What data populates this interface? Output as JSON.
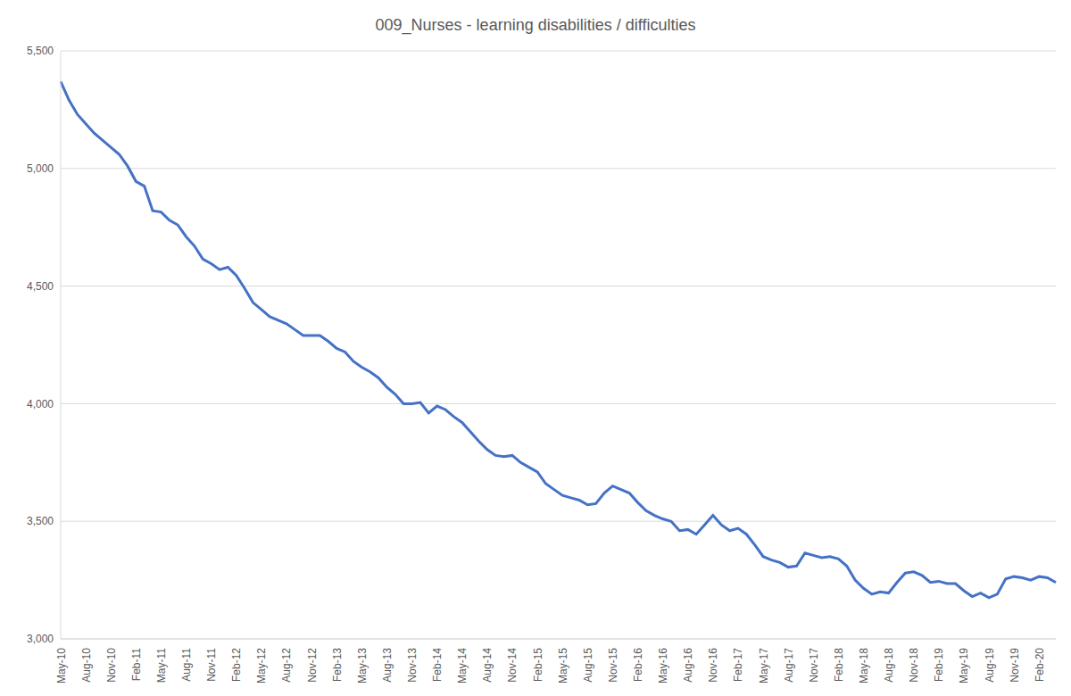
{
  "chart_data": {
    "type": "line",
    "title": "009_Nurses - learning disabilities / difficulties",
    "categories": [
      "May-10",
      null,
      null,
      "Aug-10",
      null,
      null,
      "Nov-10",
      null,
      null,
      "Feb-11",
      null,
      null,
      "May-11",
      null,
      null,
      "Aug-11",
      null,
      null,
      "Nov-11",
      null,
      null,
      "Feb-12",
      null,
      null,
      "May-12",
      null,
      null,
      "Aug-12",
      null,
      null,
      "Nov-12",
      null,
      null,
      "Feb-13",
      null,
      null,
      "May-13",
      null,
      null,
      "Aug-13",
      null,
      null,
      "Nov-13",
      null,
      null,
      "Feb-14",
      null,
      null,
      "May-14",
      null,
      null,
      "Aug-14",
      null,
      null,
      "Nov-14",
      null,
      null,
      "Feb-15",
      null,
      null,
      "May-15",
      null,
      null,
      "Aug-15",
      null,
      null,
      "Nov-15",
      null,
      null,
      "Feb-16",
      null,
      null,
      "May-16",
      null,
      null,
      "Aug-16",
      null,
      null,
      "Nov-16",
      null,
      null,
      "Feb-17",
      null,
      null,
      "May-17",
      null,
      null,
      "Aug-17",
      null,
      null,
      "Nov-17",
      null,
      null,
      "Feb-18",
      null,
      null,
      "May-18",
      null,
      null,
      "Aug-18",
      null,
      null,
      "Nov-18",
      null,
      null,
      "Feb-19",
      null,
      null,
      "May-19",
      null,
      null,
      "Aug-19",
      null,
      null,
      "Nov-19",
      null,
      null,
      "Feb-20",
      null,
      null
    ],
    "values": [
      5370,
      5290,
      5230,
      5190,
      5150,
      5120,
      5090,
      5060,
      5010,
      4945,
      4925,
      4820,
      4815,
      4780,
      4760,
      4710,
      4670,
      4615,
      4595,
      4570,
      4580,
      4545,
      4490,
      4430,
      4400,
      4370,
      4355,
      4340,
      4315,
      4290,
      4290,
      4290,
      4265,
      4235,
      4220,
      4180,
      4155,
      4135,
      4110,
      4070,
      4040,
      4000,
      4000,
      4005,
      3960,
      3990,
      3975,
      3945,
      3920,
      3880,
      3840,
      3805,
      3780,
      3775,
      3780,
      3750,
      3730,
      3710,
      3660,
      3635,
      3610,
      3600,
      3590,
      3570,
      3575,
      3620,
      3650,
      3635,
      3620,
      3580,
      3545,
      3525,
      3510,
      3500,
      3460,
      3465,
      3445,
      3485,
      3525,
      3485,
      3460,
      3470,
      3445,
      3400,
      3350,
      3335,
      3325,
      3305,
      3310,
      3365,
      3355,
      3345,
      3350,
      3340,
      3310,
      3250,
      3215,
      3190,
      3200,
      3195,
      3240,
      3280,
      3285,
      3270,
      3240,
      3245,
      3235,
      3235,
      3205,
      3180,
      3195,
      3175,
      3190,
      3255,
      3265,
      3260,
      3250,
      3265,
      3260,
      3240
    ],
    "color": "#4472c4",
    "ylim": [
      3000,
      5500
    ],
    "yticks": [
      {
        "value": 3000,
        "label": "3,000"
      },
      {
        "value": 3500,
        "label": "3,500"
      },
      {
        "value": 4000,
        "label": "4,000"
      },
      {
        "value": 4500,
        "label": "4,500"
      },
      {
        "value": 5000,
        "label": "5,000"
      },
      {
        "value": 5500,
        "label": "5,500"
      }
    ],
    "grid": true
  }
}
